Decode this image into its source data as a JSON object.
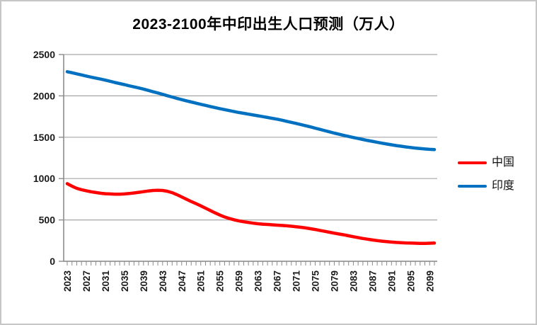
{
  "window": {
    "background": "#FFFFFF",
    "border_color": "#C6C6C6"
  },
  "chart_data": {
    "type": "line",
    "title": "2023-2100年中印出生人口预测（万人）",
    "xlabel": "",
    "ylabel": "",
    "ylim": [
      0,
      2500
    ],
    "y_ticks": [
      0,
      500,
      1000,
      1500,
      2000,
      2500
    ],
    "x_tick_labels": [
      "2023",
      "2027",
      "2031",
      "2035",
      "2039",
      "2043",
      "2047",
      "2051",
      "2055",
      "2059",
      "2063",
      "2067",
      "2071",
      "2075",
      "2079",
      "2083",
      "2087",
      "2091",
      "2095",
      "2099"
    ],
    "grid": "horizontal",
    "legend_position": "right",
    "axis_color": "#8C8C8C",
    "gridline_color": "#A6A6A6",
    "tick_label_color": "#1A1A1A",
    "x": [
      2023,
      2024,
      2025,
      2026,
      2027,
      2028,
      2029,
      2030,
      2031,
      2032,
      2033,
      2034,
      2035,
      2036,
      2037,
      2038,
      2039,
      2040,
      2041,
      2042,
      2043,
      2044,
      2045,
      2046,
      2047,
      2048,
      2049,
      2050,
      2051,
      2052,
      2053,
      2054,
      2055,
      2056,
      2057,
      2058,
      2059,
      2060,
      2061,
      2062,
      2063,
      2064,
      2065,
      2066,
      2067,
      2068,
      2069,
      2070,
      2071,
      2072,
      2073,
      2074,
      2075,
      2076,
      2077,
      2078,
      2079,
      2080,
      2081,
      2082,
      2083,
      2084,
      2085,
      2086,
      2087,
      2088,
      2089,
      2090,
      2091,
      2092,
      2093,
      2094,
      2095,
      2096,
      2097,
      2098,
      2099,
      2100
    ],
    "series": [
      {
        "name": "中国",
        "color": "#FF0000",
        "values": [
          938,
          908,
          882,
          866,
          853,
          841,
          831,
          823,
          817,
          814,
          812,
          812,
          814,
          819,
          826,
          834,
          842,
          850,
          856,
          859,
          856,
          847,
          830,
          806,
          778,
          750,
          723,
          697,
          670,
          642,
          614,
          586,
          559,
          536,
          517,
          502,
          489,
          478,
          469,
          461,
          454,
          449,
          445,
          441,
          437,
          433,
          429,
          424,
          418,
          411,
          403,
          394,
          384,
          373,
          362,
          351,
          340,
          330,
          320,
          308,
          297,
          286,
          276,
          267,
          258,
          250,
          243,
          237,
          232,
          228,
          225,
          222,
          220,
          218,
          217,
          217,
          218,
          220
        ]
      },
      {
        "name": "印度",
        "color": "#0070C0",
        "values": [
          2292,
          2280,
          2266,
          2253,
          2240,
          2227,
          2215,
          2203,
          2190,
          2176,
          2162,
          2149,
          2136,
          2122,
          2109,
          2096,
          2082,
          2066,
          2050,
          2035,
          2019,
          2002,
          1986,
          1970,
          1955,
          1940,
          1926,
          1912,
          1898,
          1885,
          1872,
          1859,
          1846,
          1834,
          1822,
          1810,
          1799,
          1789,
          1779,
          1769,
          1759,
          1749,
          1739,
          1729,
          1718,
          1706,
          1693,
          1680,
          1667,
          1653,
          1639,
          1625,
          1610,
          1595,
          1580,
          1565,
          1550,
          1536,
          1522,
          1509,
          1497,
          1485,
          1473,
          1461,
          1450,
          1439,
          1428,
          1418,
          1408,
          1399,
          1391,
          1383,
          1376,
          1369,
          1363,
          1358,
          1354,
          1351
        ]
      }
    ]
  }
}
